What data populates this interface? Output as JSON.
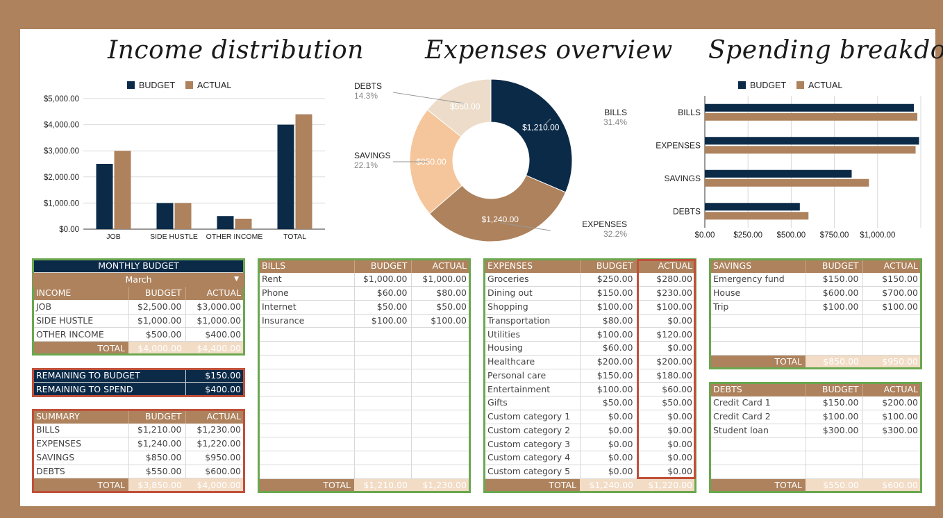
{
  "titles": {
    "income": "Income distribution",
    "expenses": "Expenses overview",
    "spending": "Spending breakdown"
  },
  "colors": {
    "budget": "#0b2a48",
    "actual": "#ad825d",
    "bills": "#0b2a48",
    "expenses": "#ad825d",
    "savings": "#f5c69b",
    "debts": "#ecdcc9",
    "frame_green": "#6aa84f",
    "frame_red": "#c0503a",
    "total_value_bg": "#f2dcc6"
  },
  "legend": {
    "budget": "BUDGET",
    "actual": "ACTUAL"
  },
  "chart_data": [
    {
      "type": "bar",
      "title": "Income distribution",
      "categories": [
        "JOB",
        "SIDE HUSTLE",
        "OTHER INCOME",
        "TOTAL"
      ],
      "series": [
        {
          "name": "BUDGET",
          "values": [
            2500,
            1000,
            500,
            4000
          ]
        },
        {
          "name": "ACTUAL",
          "values": [
            3000,
            1000,
            400,
            4400
          ]
        }
      ],
      "ylim": [
        0,
        5000
      ],
      "yticks": [
        "$0.00",
        "$1,000.00",
        "$2,000.00",
        "$3,000.00",
        "$4,000.00",
        "$5,000.00"
      ],
      "legend": "top"
    },
    {
      "type": "pie",
      "title": "Expenses overview",
      "slices": [
        {
          "name": "BILLS",
          "value": 1210,
          "label": "$1,210.00",
          "percent": "31.4%"
        },
        {
          "name": "EXPENSES",
          "value": 1240,
          "label": "$1,240.00",
          "percent": "32.2%"
        },
        {
          "name": "SAVINGS",
          "value": 850,
          "label": "$850.00",
          "percent": "22.1%"
        },
        {
          "name": "DEBTS",
          "value": 550,
          "label": "$550.00",
          "percent": "14.3%"
        }
      ]
    },
    {
      "type": "bar",
      "orientation": "horizontal",
      "title": "Spending breakdown",
      "categories": [
        "BILLS",
        "EXPENSES",
        "SAVINGS",
        "DEBTS"
      ],
      "series": [
        {
          "name": "BUDGET",
          "values": [
            1210,
            1240,
            850,
            550
          ]
        },
        {
          "name": "ACTUAL",
          "values": [
            1230,
            1220,
            950,
            600
          ]
        }
      ],
      "xlim": [
        0,
        1250
      ],
      "xticks": [
        "$0.00",
        "$250.00",
        "$500.00",
        "$750.00",
        "$1,000.00"
      ],
      "legend": "top"
    }
  ],
  "monthly": {
    "title": "MONTHLY BUDGET",
    "month": "March",
    "head": [
      "INCOME",
      "BUDGET",
      "ACTUAL"
    ],
    "rows": [
      [
        "JOB",
        "$2,500.00",
        "$3,000.00"
      ],
      [
        "SIDE HUSTLE",
        "$1,000.00",
        "$1,000.00"
      ],
      [
        "OTHER INCOME",
        "$500.00",
        "$400.00"
      ]
    ],
    "total": [
      "TOTAL",
      "$4,000.00",
      "$4,400.00"
    ]
  },
  "remaining": [
    [
      "REMAINING TO BUDGET",
      "$150.00"
    ],
    [
      "REMAINING TO SPEND",
      "$400.00"
    ]
  ],
  "summary": {
    "head": [
      "SUMMARY",
      "BUDGET",
      "ACTUAL"
    ],
    "rows": [
      [
        "BILLS",
        "$1,210.00",
        "$1,230.00"
      ],
      [
        "EXPENSES",
        "$1,240.00",
        "$1,220.00"
      ],
      [
        "SAVINGS",
        "$850.00",
        "$950.00"
      ],
      [
        "DEBTS",
        "$550.00",
        "$600.00"
      ]
    ],
    "total": [
      "TOTAL",
      "$3,850.00",
      "$4,000.00"
    ]
  },
  "bills": {
    "head": [
      "BILLS",
      "BUDGET",
      "ACTUAL"
    ],
    "rows": [
      [
        "Rent",
        "$1,000.00",
        "$1,000.00"
      ],
      [
        "Phone",
        "$60.00",
        "$80.00"
      ],
      [
        "Internet",
        "$50.00",
        "$50.00"
      ],
      [
        "Insurance",
        "$100.00",
        "$100.00"
      ],
      [
        "",
        "",
        ""
      ],
      [
        "",
        "",
        ""
      ],
      [
        "",
        "",
        ""
      ],
      [
        "",
        "",
        ""
      ],
      [
        "",
        "",
        ""
      ],
      [
        "",
        "",
        ""
      ],
      [
        "",
        "",
        ""
      ],
      [
        "",
        "",
        ""
      ],
      [
        "",
        "",
        ""
      ],
      [
        "",
        "",
        ""
      ],
      [
        "",
        "",
        ""
      ]
    ],
    "total": [
      "TOTAL",
      "$1,210.00",
      "$1,230.00"
    ]
  },
  "expenses": {
    "head": [
      "EXPENSES",
      "BUDGET",
      "ACTUAL"
    ],
    "rows": [
      [
        "Groceries",
        "$250.00",
        "$280.00"
      ],
      [
        "Dining out",
        "$150.00",
        "$230.00"
      ],
      [
        "Shopping",
        "$100.00",
        "$100.00"
      ],
      [
        "Transportation",
        "$80.00",
        "$0.00"
      ],
      [
        "Utilities",
        "$100.00",
        "$120.00"
      ],
      [
        "Housing",
        "$60.00",
        "$0.00"
      ],
      [
        "Healthcare",
        "$200.00",
        "$200.00"
      ],
      [
        "Personal care",
        "$150.00",
        "$180.00"
      ],
      [
        "Entertainment",
        "$100.00",
        "$60.00"
      ],
      [
        "Gifts",
        "$50.00",
        "$50.00"
      ],
      [
        "Custom category 1",
        "$0.00",
        "$0.00"
      ],
      [
        "Custom category 2",
        "$0.00",
        "$0.00"
      ],
      [
        "Custom category 3",
        "$0.00",
        "$0.00"
      ],
      [
        "Custom category 4",
        "$0.00",
        "$0.00"
      ],
      [
        "Custom category 5",
        "$0.00",
        "$0.00"
      ]
    ],
    "total": [
      "TOTAL",
      "$1,240.00",
      "$1,220.00"
    ]
  },
  "savings": {
    "head": [
      "SAVINGS",
      "BUDGET",
      "ACTUAL"
    ],
    "rows": [
      [
        "Emergency fund",
        "$150.00",
        "$150.00"
      ],
      [
        "House",
        "$600.00",
        "$700.00"
      ],
      [
        "Trip",
        "$100.00",
        "$100.00"
      ],
      [
        "",
        "",
        ""
      ],
      [
        "",
        "",
        ""
      ],
      [
        "",
        "",
        ""
      ]
    ],
    "total": [
      "TOTAL",
      "$850.00",
      "$950.00"
    ]
  },
  "debts": {
    "head": [
      "DEBTS",
      "BUDGET",
      "ACTUAL"
    ],
    "rows": [
      [
        "Credit Card 1",
        "$150.00",
        "$200.00"
      ],
      [
        "Credit Card 2",
        "$100.00",
        "$100.00"
      ],
      [
        "Student loan",
        "$300.00",
        "$300.00"
      ],
      [
        "",
        "",
        ""
      ],
      [
        "",
        "",
        ""
      ],
      [
        "",
        "",
        ""
      ]
    ],
    "total": [
      "TOTAL",
      "$550.00",
      "$600.00"
    ]
  }
}
